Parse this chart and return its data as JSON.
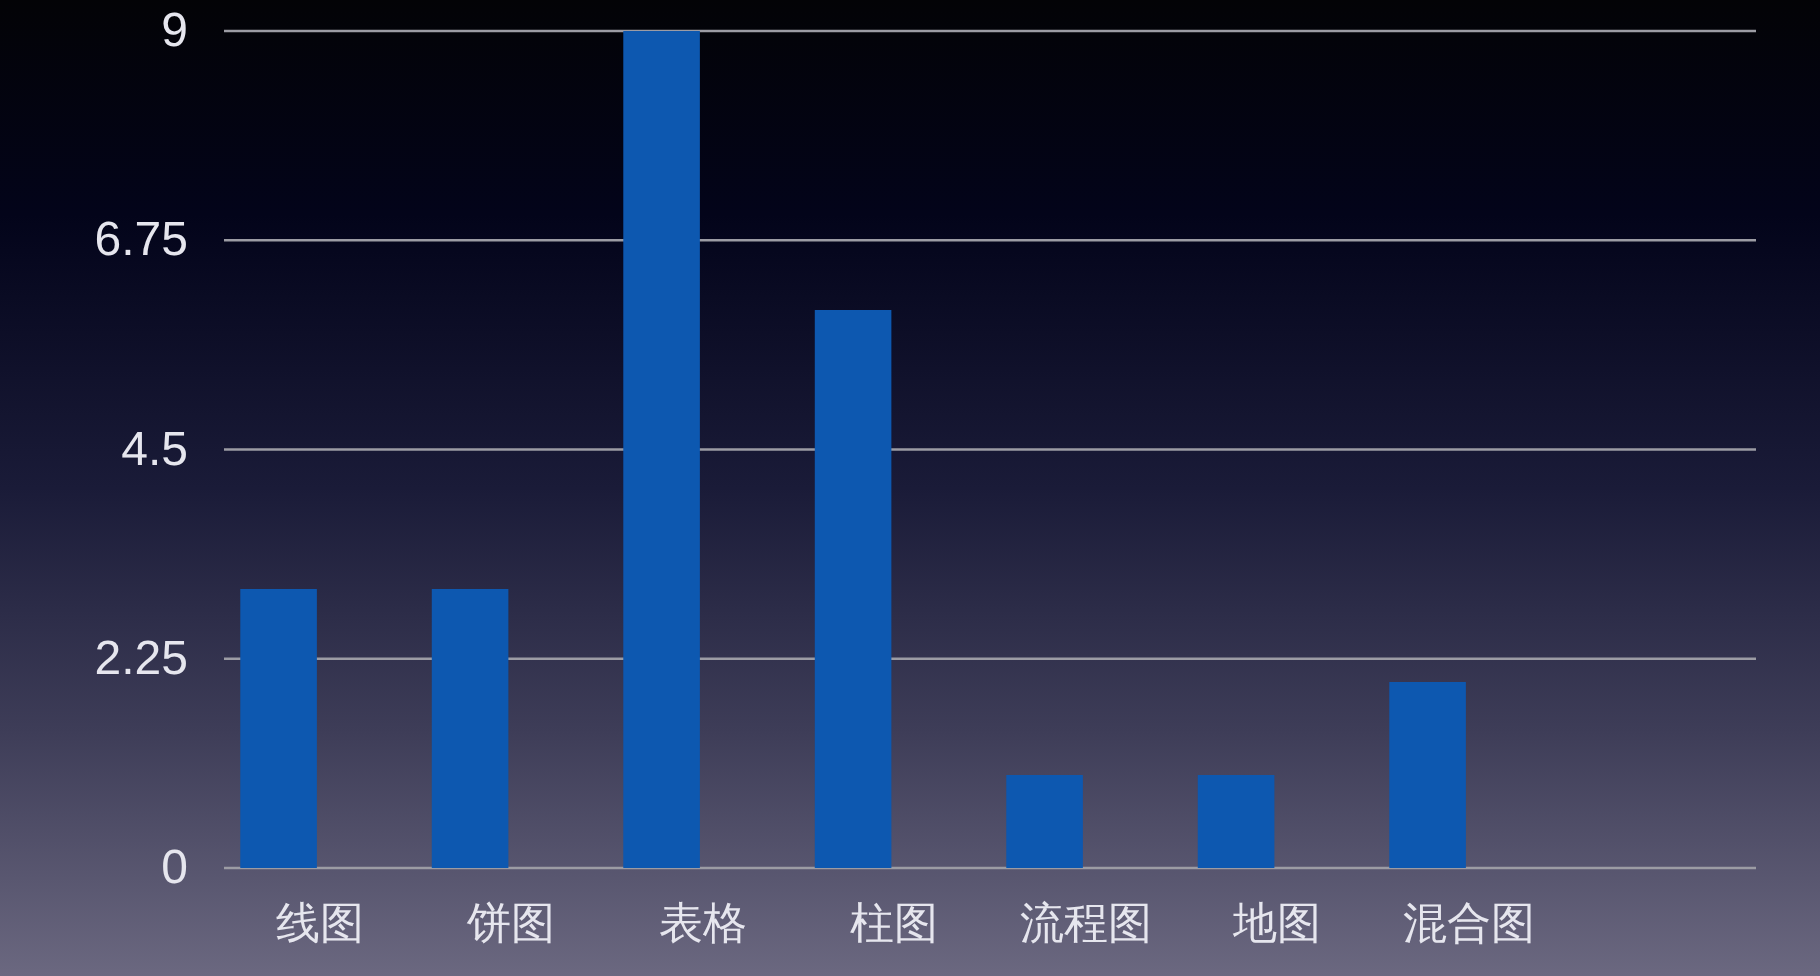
{
  "chart_data": {
    "type": "bar",
    "categories": [
      "线图",
      "饼图",
      "表格",
      "柱图",
      "流程图",
      "地图",
      "混合图",
      null
    ],
    "values": [
      3,
      3,
      9,
      6,
      1,
      1,
      2,
      null
    ],
    "color": "#0d58b0",
    "ylim": [
      0,
      9
    ],
    "yticks": [
      0,
      2.25,
      4.5,
      6.75,
      9
    ],
    "grid": "y"
  }
}
